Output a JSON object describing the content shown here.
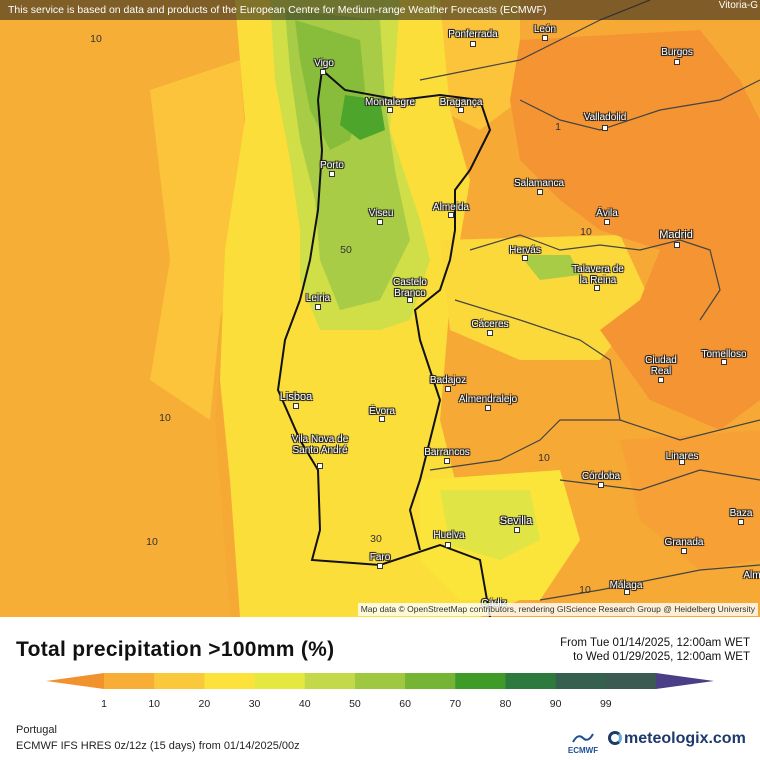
{
  "banner": {
    "text": "This service is based on data and products of the European Centre for Medium-range Weather Forecasts (ECMWF)"
  },
  "map": {
    "attribution": "Map data © OpenStreetMap contributors, rendering GIScience Research Group @ Heidelberg University",
    "corner_label": "Vitoria-G",
    "cities": [
      "Ponferrada",
      "León",
      "Vigo",
      "Burgos",
      "Montalegre",
      "Bragança",
      "Valladolid",
      "Porto",
      "Salamanca",
      "Almeida",
      "Viseu",
      "Ávila",
      "Madrid",
      "Hervás",
      "Talavera de la Reina",
      "Castelo Branco",
      "Leiria",
      "Cáceres",
      "Ciudad Real",
      "Tomelloso",
      "Badajoz",
      "Almendralejo",
      "Lisboa",
      "Évora",
      "Vila Nova de Santo André",
      "Barrancos",
      "Linares",
      "Córdoba",
      "Sevilla",
      "Baza",
      "Huelva",
      "Granada",
      "Faro",
      "Málaga",
      "Cádiz",
      "Alm"
    ],
    "contour_labels": [
      "10",
      "1",
      "10",
      "50",
      "10",
      "10",
      "10",
      "30",
      "10"
    ],
    "colors": {
      "c1": "#f49a3a",
      "c10": "#f9b63a",
      "c20": "#fbd43a",
      "c30": "#fbeb3a",
      "c40": "#d4df48",
      "c50": "#a9cc45",
      "c60": "#83bb3a",
      "c70": "#4ea52c",
      "sea_bg": "#f7a935",
      "border": "#111111"
    }
  },
  "title": "Total precipitation >100mm (%)",
  "date_range": {
    "from": "From Tue 01/14/2025, 12:00am WET",
    "to": "to Wed 01/29/2025, 12:00am WET"
  },
  "legend": {
    "ticks": [
      "1",
      "10",
      "20",
      "30",
      "40",
      "50",
      "60",
      "70",
      "80",
      "90",
      "99"
    ],
    "colors": [
      "#f2922f",
      "#f7ad36",
      "#fac93b",
      "#fbe33b",
      "#e4e83f",
      "#c4d94a",
      "#9fc840",
      "#75b434",
      "#3e9b28",
      "#2c7a3e",
      "#35604f",
      "#3a5a52",
      "#4a3f86"
    ]
  },
  "region": "Portugal",
  "model": "ECMWF IFS HRES 0z/12z (15 days) from 01/14/2025/00z",
  "logos": {
    "ecmwf": "ECMWF",
    "meteologix": "meteologix.com"
  }
}
